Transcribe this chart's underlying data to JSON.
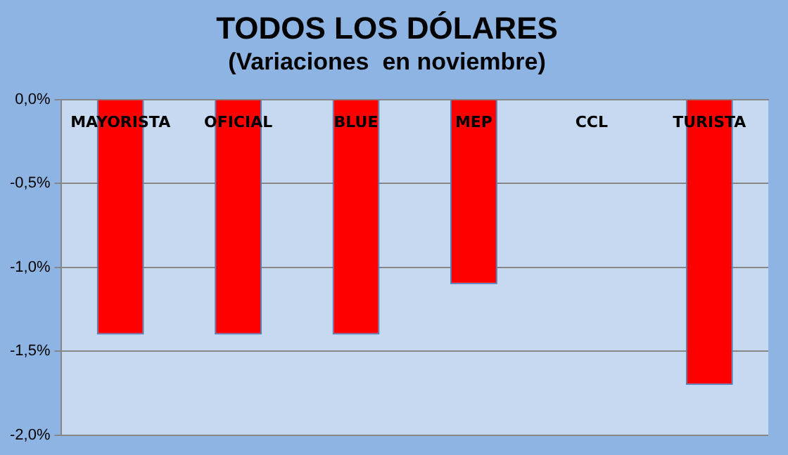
{
  "chart_data": {
    "type": "bar",
    "title": "TODOS LOS DÓLARES",
    "subtitle": "(Variaciones  en noviembre)",
    "categories": [
      "MAYORISTA",
      "OFICIAL",
      "BLUE",
      "MEP",
      "CCL",
      "TURISTA"
    ],
    "values": [
      -1.4,
      -1.4,
      -1.4,
      -1.1,
      0,
      -1.7
    ],
    "color": "#ff0000",
    "ylim": [
      -2,
      0
    ],
    "yticks": [
      {
        "value": 0,
        "label": "0,0%"
      },
      {
        "value": -0.5,
        "label": "-0,5%"
      },
      {
        "value": -1,
        "label": "-1,0%"
      },
      {
        "value": -1.5,
        "label": "-1,5%"
      },
      {
        "value": -2,
        "label": "-2,0%"
      }
    ],
    "grid": "y",
    "legend": false
  }
}
